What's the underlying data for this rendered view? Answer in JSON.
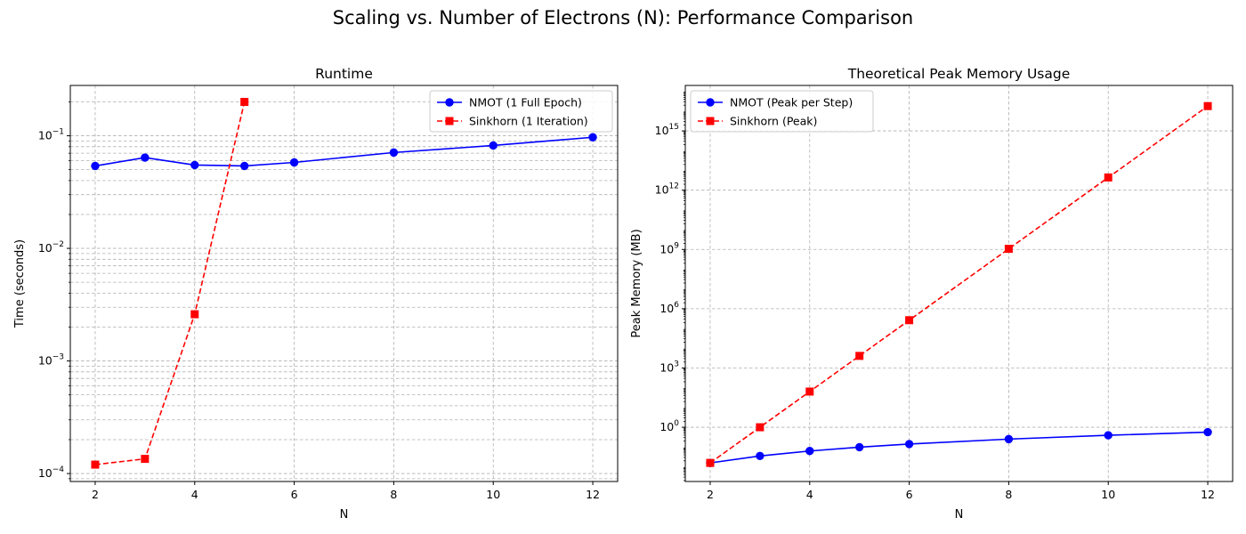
{
  "suptitle": "Scaling vs. Number of Electrons (N): Performance Comparison",
  "colors": {
    "blue": "#0000ff",
    "red": "#ff0000",
    "grid": "#b0b0b0"
  },
  "chart_data": [
    {
      "type": "line",
      "title": "Runtime",
      "xlabel": "N",
      "ylabel": "Time (seconds)",
      "yscale": "log",
      "xlim": [
        1.5,
        12.5
      ],
      "ylim": [
        8.5e-05,
        0.28
      ],
      "xticks": [
        2,
        4,
        6,
        8,
        10,
        12
      ],
      "yticks": [
        {
          "value": 0.0001,
          "base": "10",
          "exp": "−4"
        },
        {
          "value": 0.001,
          "base": "10",
          "exp": "−3"
        },
        {
          "value": 0.01,
          "base": "10",
          "exp": "−2"
        },
        {
          "value": 0.1,
          "base": "10",
          "exp": "−1"
        }
      ],
      "minor_grid": true,
      "grid": true,
      "legend_position": "upper right",
      "series": [
        {
          "name": "NMOT (1 Full Epoch)",
          "color": "#0000ff",
          "linestyle": "solid",
          "marker": "circle",
          "x": [
            2,
            3,
            4,
            5,
            6,
            8,
            10,
            12
          ],
          "y": [
            0.054,
            0.064,
            0.055,
            0.054,
            0.058,
            0.071,
            0.082,
            0.097
          ]
        },
        {
          "name": "Sinkhorn (1 Iteration)",
          "color": "#ff0000",
          "linestyle": "dashed",
          "marker": "square",
          "x": [
            2,
            3,
            4,
            5
          ],
          "y": [
            0.00012,
            0.000135,
            0.0026,
            0.2
          ]
        }
      ]
    },
    {
      "type": "line",
      "title": "Theoretical Peak Memory Usage",
      "xlabel": "N",
      "ylabel": "Peak Memory (MB)",
      "yscale": "log",
      "xlim": [
        1.5,
        12.5
      ],
      "ylim": [
        0.0018,
        2e+17
      ],
      "xticks": [
        2,
        4,
        6,
        8,
        10,
        12
      ],
      "yticks": [
        {
          "value": 1,
          "base": "10",
          "exp": "0"
        },
        {
          "value": 1000,
          "base": "10",
          "exp": "3"
        },
        {
          "value": 1000000,
          "base": "10",
          "exp": "6"
        },
        {
          "value": 1000000000,
          "base": "10",
          "exp": "9"
        },
        {
          "value": 1000000000000,
          "base": "10",
          "exp": "12"
        },
        {
          "value": 1000000000000000,
          "base": "10",
          "exp": "15"
        }
      ],
      "minor_grid": false,
      "grid": true,
      "legend_position": "upper left",
      "series": [
        {
          "name": "NMOT (Peak per Step)",
          "color": "#0000ff",
          "linestyle": "solid",
          "marker": "circle",
          "x": [
            2,
            3,
            4,
            5,
            6,
            8,
            10,
            12
          ],
          "y": [
            0.0157,
            0.0354,
            0.0629,
            0.0983,
            0.1416,
            0.2517,
            0.3933,
            0.5664
          ]
        },
        {
          "name": "Sinkhorn (Peak)",
          "color": "#ff0000",
          "linestyle": "dashed",
          "marker": "square",
          "x": [
            2,
            3,
            4,
            5,
            6,
            8,
            10,
            12
          ],
          "y": [
            0.0157,
            1.0,
            64.0,
            4096.0,
            262144.0,
            1073741824.0,
            4398046511104.0,
            1.8014398509481984e+16
          ]
        }
      ]
    }
  ]
}
